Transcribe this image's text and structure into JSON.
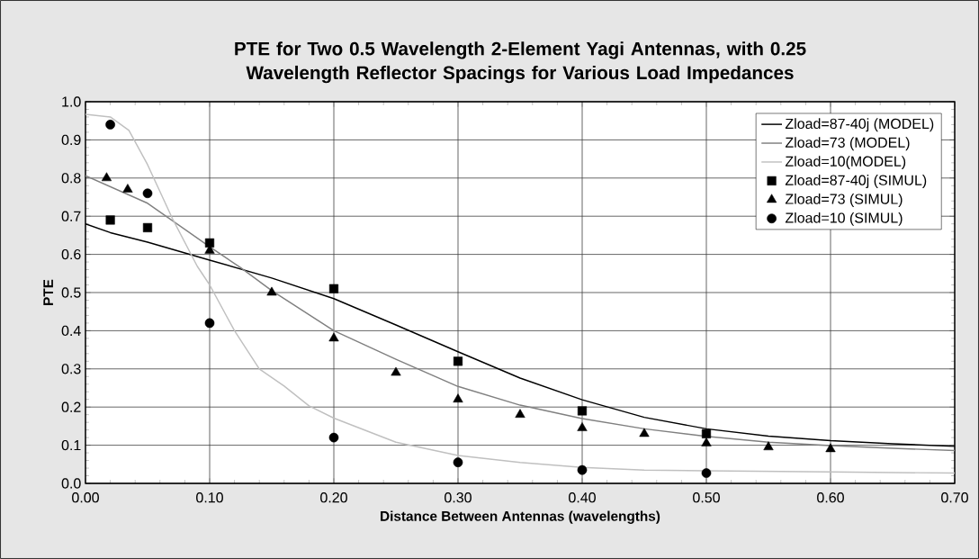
{
  "chart_data": {
    "type": "line",
    "title": "PTE for Two 0.5 Wavelength 2-Element Yagi Antennas, with 0.25 Wavelength Reflector Spacings for Various Load Impedances",
    "xlabel": "Distance Between Antennas (wavelengths)",
    "ylabel": "PTE",
    "xlim": [
      0,
      0.7
    ],
    "ylim": [
      0,
      1.0
    ],
    "xticks": [
      {
        "value": 0,
        "label": "0.00"
      },
      {
        "value": 0.1,
        "label": "0.10"
      },
      {
        "value": 0.2,
        "label": "0.20"
      },
      {
        "value": 0.3,
        "label": "0.30"
      },
      {
        "value": 0.4,
        "label": "0.40"
      },
      {
        "value": 0.5,
        "label": "0.50"
      },
      {
        "value": 0.6,
        "label": "0.60"
      },
      {
        "value": 0.7,
        "label": "0.70"
      }
    ],
    "yticks": [
      {
        "value": 0,
        "label": "0.0"
      },
      {
        "value": 0.1,
        "label": "0.1"
      },
      {
        "value": 0.2,
        "label": "0.2"
      },
      {
        "value": 0.3,
        "label": "0.3"
      },
      {
        "value": 0.4,
        "label": "0.4"
      },
      {
        "value": 0.5,
        "label": "0.5"
      },
      {
        "value": 0.6,
        "label": "0.6"
      },
      {
        "value": 0.7,
        "label": "0.7"
      },
      {
        "value": 0.8,
        "label": "0.8"
      },
      {
        "value": 0.9,
        "label": "0.9"
      },
      {
        "value": 1.0,
        "label": "1.0"
      }
    ],
    "grid": true,
    "legend": "top right",
    "series": [
      {
        "name": "Zload=87-40j (MODEL)",
        "type": "line",
        "marker": "none",
        "color": "#000000",
        "x": [
          0,
          0.02,
          0.05,
          0.1,
          0.15,
          0.2,
          0.25,
          0.3,
          0.35,
          0.4,
          0.45,
          0.5,
          0.55,
          0.6,
          0.65,
          0.7
        ],
        "values": [
          0.68,
          0.657,
          0.632,
          0.585,
          0.538,
          0.484,
          0.415,
          0.345,
          0.276,
          0.219,
          0.173,
          0.143,
          0.124,
          0.112,
          0.104,
          0.097
        ]
      },
      {
        "name": "Zload=73 (MODEL)",
        "type": "line",
        "marker": "none",
        "color": "#808080",
        "x": [
          0,
          0.05,
          0.1,
          0.125,
          0.15,
          0.2,
          0.25,
          0.3,
          0.35,
          0.4,
          0.45,
          0.5,
          0.55,
          0.6,
          0.65,
          0.7
        ],
        "values": [
          0.806,
          0.734,
          0.62,
          0.565,
          0.505,
          0.4,
          0.325,
          0.254,
          0.205,
          0.17,
          0.143,
          0.123,
          0.108,
          0.099,
          0.092,
          0.086
        ]
      },
      {
        "name": "Zload=10(MODEL)",
        "type": "line",
        "marker": "none",
        "color": "#c0c0c0",
        "x": [
          0,
          0.02,
          0.035,
          0.05,
          0.07,
          0.09,
          0.1,
          0.12,
          0.14,
          0.16,
          0.18,
          0.2,
          0.25,
          0.3,
          0.35,
          0.4,
          0.45,
          0.5,
          0.6,
          0.7
        ],
        "values": [
          0.967,
          0.96,
          0.925,
          0.835,
          0.694,
          0.569,
          0.52,
          0.4,
          0.3,
          0.255,
          0.203,
          0.171,
          0.108,
          0.073,
          0.055,
          0.042,
          0.035,
          0.033,
          0.03,
          0.027
        ]
      },
      {
        "name": "Zload=87-40j (SIMUL)",
        "type": "scatter",
        "marker": "square",
        "color": "#000000",
        "x": [
          0.02,
          0.05,
          0.1,
          0.2,
          0.3,
          0.4,
          0.5
        ],
        "values": [
          0.69,
          0.67,
          0.63,
          0.51,
          0.32,
          0.19,
          0.13
        ]
      },
      {
        "name": "Zload=73 (SIMUL)",
        "type": "scatter",
        "marker": "triangle",
        "color": "#000000",
        "x": [
          0.017,
          0.034,
          0.1,
          0.15,
          0.2,
          0.25,
          0.3,
          0.35,
          0.4,
          0.45,
          0.5,
          0.55,
          0.6
        ],
        "values": [
          0.8,
          0.77,
          0.61,
          0.5,
          0.38,
          0.29,
          0.22,
          0.18,
          0.145,
          0.13,
          0.105,
          0.095,
          0.09
        ]
      },
      {
        "name": "Zload=10 (SIMUL)",
        "type": "scatter",
        "marker": "circle",
        "color": "#000000",
        "x": [
          0.02,
          0.05,
          0.1,
          0.2,
          0.3,
          0.4,
          0.5
        ],
        "values": [
          0.94,
          0.76,
          0.42,
          0.12,
          0.055,
          0.035,
          0.027
        ]
      }
    ]
  }
}
